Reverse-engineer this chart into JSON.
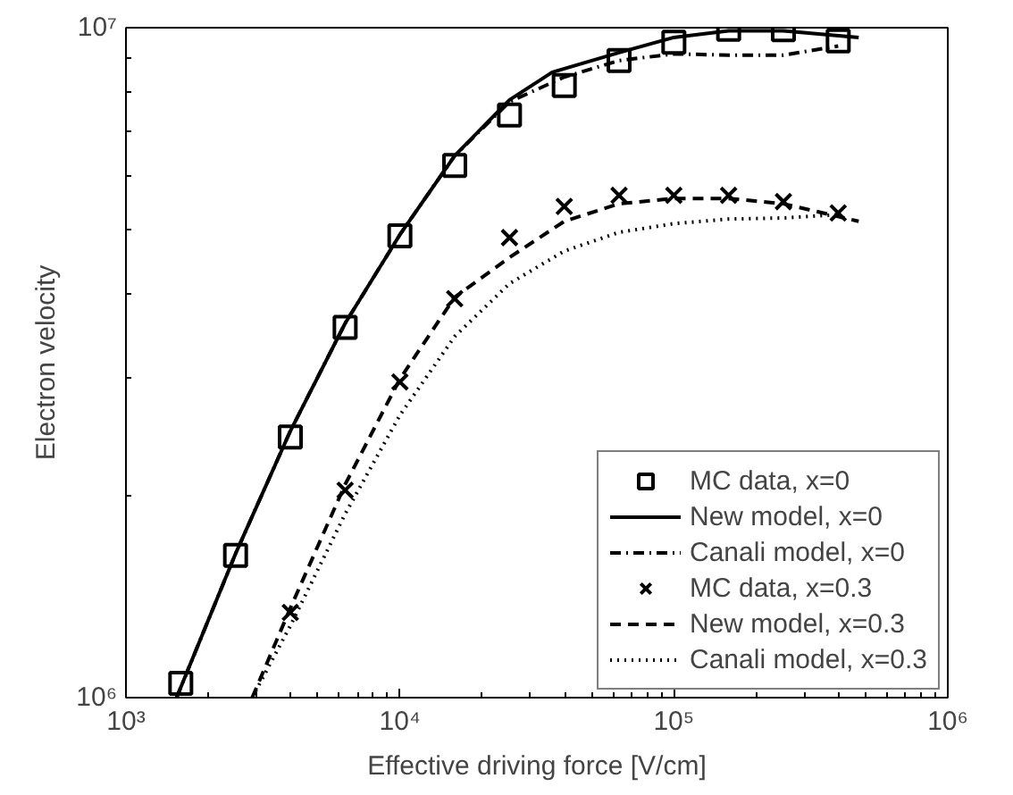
{
  "chart_data": {
    "type": "line",
    "xlabel": "Effective driving force [V/cm]",
    "ylabel": "Electron velocity",
    "log": "xy",
    "grid": false,
    "legend": "bottom right",
    "xlim": [
      1000,
      1000000
    ],
    "ylim": [
      1000000,
      10000000
    ],
    "xticks": [
      {
        "value": 1000,
        "label": "10³"
      },
      {
        "value": 10000,
        "label": "10⁴"
      },
      {
        "value": 100000,
        "label": "10⁵"
      },
      {
        "value": 1000000,
        "label": "10⁶"
      }
    ],
    "yticks": [
      {
        "value": 1000000,
        "label": "10⁶"
      },
      {
        "value": 10000000,
        "label": "10⁷"
      }
    ],
    "series": [
      {
        "name": "MC data, x=0",
        "type": "scatter",
        "marker": "square",
        "color": "#000000",
        "x": [
          1585,
          2512,
          3981,
          6310,
          10000,
          15849,
          25119,
          39811,
          63096,
          100000,
          158489,
          251189,
          398107
        ],
        "values": [
          1050000,
          1630000,
          2450000,
          3570000,
          4890000,
          6230000,
          7410000,
          8200000,
          8930000,
          9510000,
          9950000,
          9930000,
          9560000
        ]
      },
      {
        "name": "New model, x=0",
        "line_style": "solid",
        "color": "#000000",
        "x": [
          1530,
          2512,
          3981,
          6310,
          10000,
          15849,
          25119,
          35980,
          63096,
          100000,
          158489,
          251189,
          473000
        ],
        "values": [
          1000000,
          1640000,
          2500000,
          3620000,
          4910000,
          6440000,
          7800000,
          8580000,
          9180000,
          9670000,
          9890000,
          9890000,
          9670000
        ]
      },
      {
        "name": "Canali model, x=0",
        "line_style": "dashdot",
        "color": "#000000",
        "x": [
          1530,
          2512,
          3981,
          6310,
          10000,
          15849,
          25119,
          39811,
          63096,
          100000,
          158489,
          251189,
          398107
        ],
        "values": [
          1000000,
          1640000,
          2500000,
          3620000,
          4910000,
          6440000,
          7750000,
          8440000,
          8930000,
          9140000,
          9100000,
          9100000,
          9390000
        ]
      },
      {
        "name": "MC data, x=0.3",
        "type": "scatter",
        "marker": "cross",
        "color": "#000000",
        "x": [
          3981,
          6310,
          10000,
          15849,
          25119,
          39811,
          63096,
          100000,
          158489,
          251189,
          398107
        ],
        "values": [
          1340000,
          2040000,
          2960000,
          3940000,
          4860000,
          5410000,
          5620000,
          5620000,
          5620000,
          5500000,
          5290000
        ]
      },
      {
        "name": "New model, x=0.3",
        "line_style": "dashed",
        "color": "#000000",
        "x": [
          2890,
          3981,
          6310,
          10000,
          15849,
          25119,
          39811,
          63096,
          100000,
          158489,
          251189,
          473000
        ],
        "values": [
          1000000,
          1360000,
          2080000,
          2990000,
          3960000,
          4540000,
          5140000,
          5460000,
          5560000,
          5560000,
          5460000,
          5140000
        ]
      },
      {
        "name": "Canali model, x=0.3",
        "line_style": "dotted",
        "color": "#000000",
        "x": [
          2890,
          3981,
          6310,
          10000,
          15849,
          25119,
          39811,
          63096,
          100000,
          158489,
          251189,
          398107
        ],
        "values": [
          1000000,
          1280000,
          1880000,
          2640000,
          3460000,
          4150000,
          4640000,
          4950000,
          5100000,
          5180000,
          5200000,
          5260000
        ]
      }
    ]
  }
}
